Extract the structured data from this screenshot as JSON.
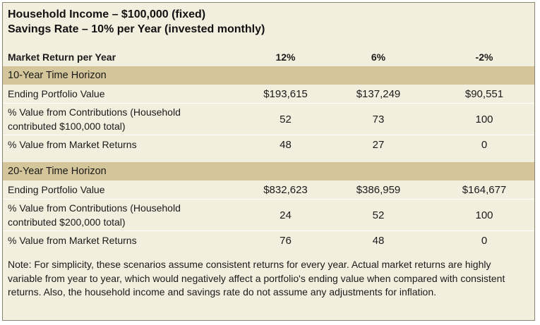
{
  "title_line1": "Household Income – $100,000 (fixed)",
  "title_line2": "Savings Rate – 10% per Year (invested monthly)",
  "header": {
    "label": "Market Return per Year",
    "col1": "12%",
    "col2": "6%",
    "col3": "-2%"
  },
  "sections": [
    {
      "title": "10-Year Time Horizon",
      "rows": [
        {
          "label": "Ending Portfolio Value",
          "v1": "$193,615",
          "v2": "$137,249",
          "v3": "$90,551"
        },
        {
          "label": "% Value from Contributions (Household contributed $100,000 total)",
          "v1": "52",
          "v2": "73",
          "v3": "100"
        },
        {
          "label": "% Value from Market Returns",
          "v1": "48",
          "v2": "27",
          "v3": "0"
        }
      ]
    },
    {
      "title": "20-Year Time Horizon",
      "rows": [
        {
          "label": "Ending Portfolio Value",
          "v1": "$832,623",
          "v2": "$386,959",
          "v3": "$164,677"
        },
        {
          "label": "% Value from Contributions (Household contributed $200,000 total)",
          "v1": "24",
          "v2": "52",
          "v3": "100"
        },
        {
          "label": "% Value from Market Returns",
          "v1": "76",
          "v2": "48",
          "v3": "0"
        }
      ]
    }
  ],
  "note": "Note: For simplicity, these scenarios assume consistent returns for every year. Actual market returns are highly variable from year to year, which would negatively affect a portfolio's ending value when compared with consistent returns. Also, the household income and savings rate do not assume any adjustments for inflation."
}
